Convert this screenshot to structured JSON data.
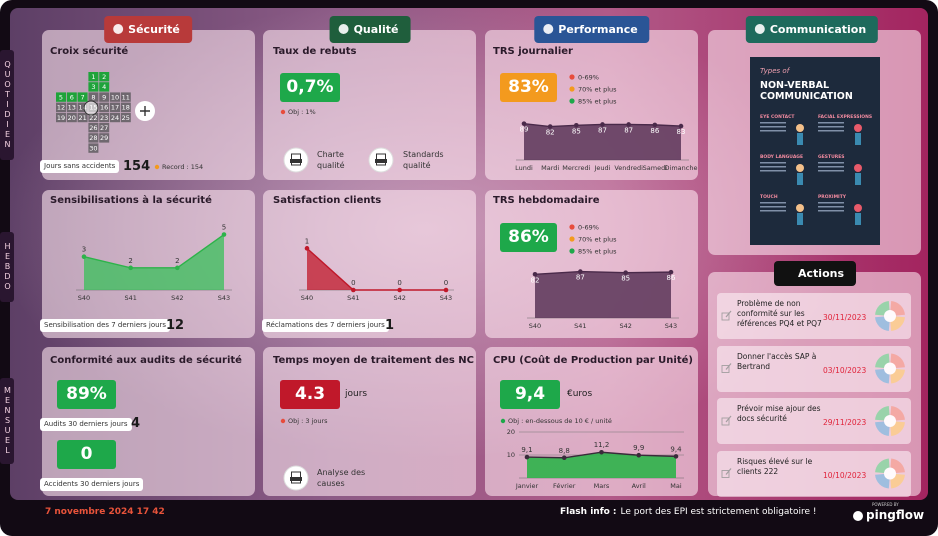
{
  "side_labels": [
    "QUOTIDIEN",
    "HEBDO",
    "MENSUEL"
  ],
  "sections": [
    {
      "label": "Sécurité",
      "color": "#b83a3a"
    },
    {
      "label": "Qualité",
      "color": "#1f5e3c"
    },
    {
      "label": "Performance",
      "color": "#2a5596"
    },
    {
      "label": "Communication",
      "color": "#1e6a5c"
    }
  ],
  "croix": {
    "title": "Croix sécurité",
    "days": [
      {
        "day": 1,
        "color": "#1fa33a"
      },
      {
        "day": 2,
        "color": "#1fa33a"
      },
      {
        "day": 3,
        "color": "#1fa33a"
      },
      {
        "day": 4,
        "color": "#1fa33a"
      },
      {
        "day": 5,
        "color": "#1fa33a"
      },
      {
        "day": 6,
        "color": "#1fa33a"
      },
      {
        "day": 7,
        "color": "#1fa33a"
      },
      {
        "day": 8,
        "color": "#6f686f"
      },
      {
        "day": 9,
        "color": "#6f686f"
      },
      {
        "day": 10,
        "color": "#6f686f"
      },
      {
        "day": 11,
        "color": "#6f686f"
      },
      {
        "day": 12,
        "color": "#6f686f"
      },
      {
        "day": 13,
        "color": "#6f686f"
      },
      {
        "day": 14,
        "color": "#6f686f"
      },
      {
        "day": 15,
        "color": "#6f686f"
      },
      {
        "day": 16,
        "color": "#6f686f"
      },
      {
        "day": 17,
        "color": "#6f686f"
      },
      {
        "day": 18,
        "color": "#6f686f"
      },
      {
        "day": 19,
        "color": "#6f686f"
      },
      {
        "day": 20,
        "color": "#6f686f"
      },
      {
        "day": 21,
        "color": "#6f686f"
      },
      {
        "day": 22,
        "color": "#6f686f"
      },
      {
        "day": 23,
        "color": "#6f686f"
      },
      {
        "day": 24,
        "color": "#6f686f"
      },
      {
        "day": 25,
        "color": "#6f686f"
      },
      {
        "day": 26,
        "color": "#6f686f"
      },
      {
        "day": 27,
        "color": "#6f686f"
      },
      {
        "day": 28,
        "color": "#6f686f"
      },
      {
        "day": 29,
        "color": "#6f686f"
      },
      {
        "day": 30,
        "color": "#6f686f"
      }
    ],
    "counter_label": "Jours sans accidents",
    "counter": 154,
    "record": "Record : 154"
  },
  "rebuts": {
    "title": "Taux de rebuts",
    "value": "0,7%",
    "color": "#1ea84a",
    "objective": "Obj : 1%",
    "docs": [
      "Charte qualité",
      "Standards qualité"
    ]
  },
  "trs_legend": [
    {
      "label": "0-69%",
      "color": "#e74c3c"
    },
    {
      "label": "70% et plus",
      "color": "#f39a1e"
    },
    {
      "label": "85% et plus",
      "color": "#1ea84a"
    }
  ],
  "trs_jour": {
    "title": "TRS journalier",
    "value": "83%",
    "color": "#f39a1e",
    "chart": {
      "type": "area",
      "categories": [
        "Lundi",
        "Mardi",
        "Mercredi",
        "Jeudi",
        "Vendredi",
        "Samedi",
        "Dimanche"
      ],
      "values": [
        89,
        82,
        85,
        87,
        87,
        86,
        83
      ],
      "ylim": [
        0,
        120
      ],
      "color": "#4a2a4a",
      "fill": "#5b3558"
    }
  },
  "sensibilisation": {
    "title": "Sensibilisations à la sécurité",
    "chart": {
      "type": "area",
      "categories": [
        "S40",
        "S41",
        "S42",
        "S43"
      ],
      "values": [
        3,
        2,
        2,
        5
      ],
      "ylim": [
        0,
        5.5
      ],
      "color": "#2db34a",
      "fill": "#38c05a"
    },
    "counter_label": "Sensibilisation des 7 derniers jours",
    "counter": 12
  },
  "satisfaction": {
    "title": "Satisfaction clients",
    "chart": {
      "type": "area",
      "categories": [
        "S40",
        "S41",
        "S42",
        "S43"
      ],
      "values": [
        1,
        0,
        0,
        0
      ],
      "ylim": [
        0,
        1.2
      ],
      "color": "#c0182a",
      "fill": "#c0182a"
    },
    "counter_label": "Réclamations des 7 derniers jours",
    "counter": 1
  },
  "trs_hebdo": {
    "title": "TRS hebdomadaire",
    "value": "86%",
    "color": "#1ea84a",
    "chart": {
      "type": "area",
      "categories": [
        "S40",
        "S41",
        "S42",
        "S43"
      ],
      "values": [
        82,
        87,
        85,
        86
      ],
      "ylim": [
        0,
        120
      ],
      "color": "#4a2a4a",
      "fill": "#5b3558"
    }
  },
  "conformite": {
    "title": "Conformité aux audits de sécurité",
    "kpis": [
      {
        "value": "89%",
        "color": "#1ea84a",
        "label": "Audits 30 derniers jours",
        "counter": 4
      },
      {
        "value": "0",
        "color": "#1ea84a",
        "label": "Accidents 30 derniers jours"
      }
    ]
  },
  "nc": {
    "title": "Temps moyen de traitement des NC",
    "value": "4.3",
    "color": "#c0182a",
    "unit": "jours",
    "objective": "Obj : 3 jours",
    "doc": "Analyse des causes"
  },
  "cpu": {
    "title": "CPU (Coût de Production par Unité)",
    "value": "9,4",
    "color": "#1ea84a",
    "unit": "€uros",
    "objective": "Obj : en-dessous de 10 € / unité",
    "chart": {
      "type": "area",
      "categories": [
        "Janvier",
        "Février",
        "Mars",
        "Avril",
        "Mai"
      ],
      "values": [
        9.1,
        8.8,
        11.2,
        9.9,
        9.4
      ],
      "value_labels": [
        "9,1",
        "8,8",
        "11,2",
        "9,9",
        "9,4"
      ],
      "ylim": [
        0,
        20
      ],
      "yticks": [
        10,
        20
      ],
      "grid": true,
      "color": "#3a2a3a",
      "fill": "#2db34a"
    }
  },
  "poster": {
    "kicker": "Types of",
    "title_lines": [
      "NON-VERBAL",
      "COMMUNICATION"
    ],
    "headings": [
      "EYE CONTACT",
      "FACIAL EXPRESSIONS",
      "BODY LANGUAGE",
      "GESTURES",
      "TOUCH",
      "PROXIMITY"
    ]
  },
  "actions": {
    "title": "Actions",
    "items": [
      {
        "text": "Problème de non conformité sur les références PQ4 et PQ7",
        "date": "30/11/2023"
      },
      {
        "text": "Donner l'accès SAP à Bertrand",
        "date": "03/10/2023"
      },
      {
        "text": "Prévoir mise ajour des docs sécurité",
        "date": "29/11/2023"
      },
      {
        "text": "Risques élevé sur le clients 222",
        "date": "10/10/2023"
      }
    ]
  },
  "footer": {
    "datetime": "7 novembre 2024 17 42",
    "flash_label": "Flash info :",
    "flash_text": "Le port des EPI est strictement obligatoire !",
    "powered": "POWERED BY",
    "brand": "pingflow"
  }
}
